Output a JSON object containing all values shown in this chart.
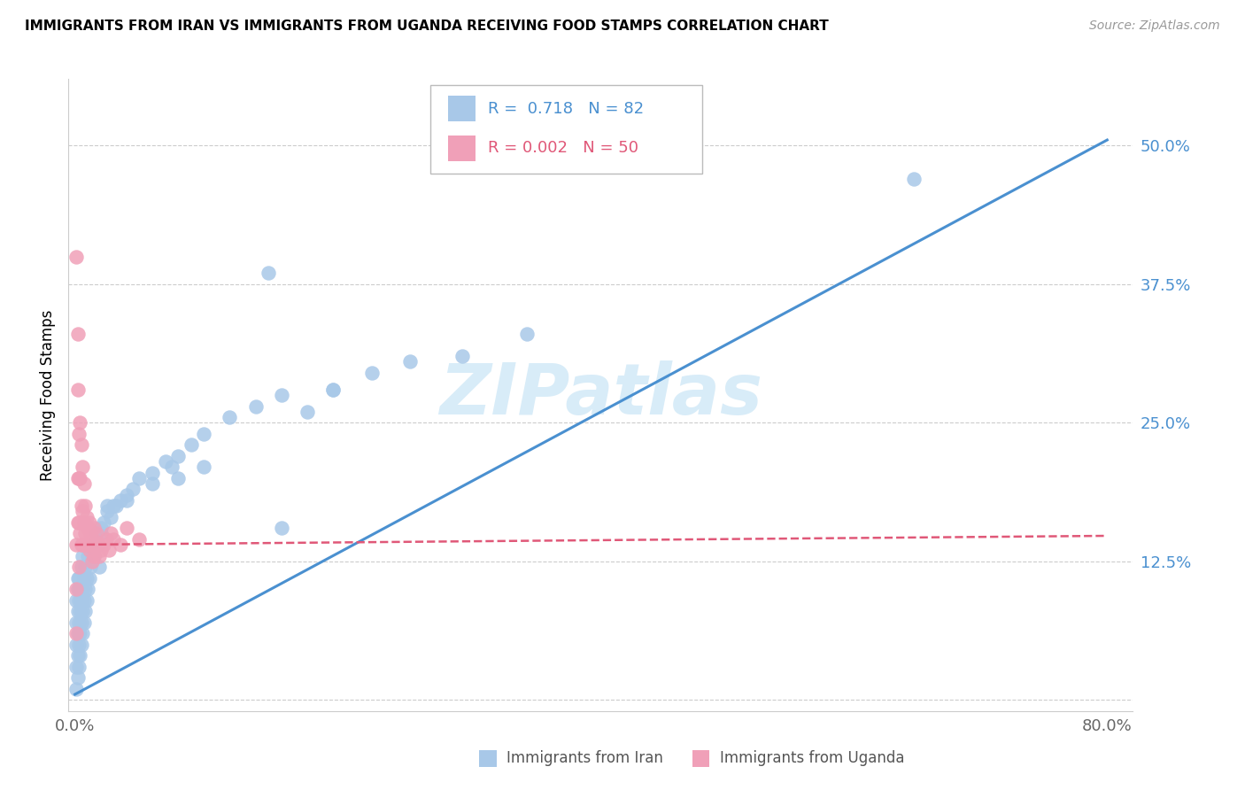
{
  "title": "IMMIGRANTS FROM IRAN VS IMMIGRANTS FROM UGANDA RECEIVING FOOD STAMPS CORRELATION CHART",
  "source": "Source: ZipAtlas.com",
  "ylabel": "Receiving Food Stamps",
  "xlim": [
    -0.005,
    0.82
  ],
  "ylim": [
    -0.01,
    0.56
  ],
  "xticks": [
    0.0,
    0.1,
    0.2,
    0.3,
    0.4,
    0.5,
    0.6,
    0.7,
    0.8
  ],
  "xticklabels": [
    "0.0%",
    "",
    "",
    "",
    "",
    "",
    "",
    "",
    "80.0%"
  ],
  "yticks": [
    0.0,
    0.125,
    0.25,
    0.375,
    0.5
  ],
  "yticklabels": [
    "",
    "12.5%",
    "25.0%",
    "37.5%",
    "50.0%"
  ],
  "iran_R": 0.718,
  "iran_N": 82,
  "uganda_R": 0.002,
  "uganda_N": 50,
  "iran_color": "#a8c8e8",
  "iran_line_color": "#4a90d0",
  "uganda_color": "#f0a0b8",
  "uganda_line_color": "#e05878",
  "watermark_color": "#d8ecf8",
  "grid_color": "#cccccc",
  "iran_scatter_x": [
    0.001,
    0.001,
    0.001,
    0.001,
    0.001,
    0.002,
    0.002,
    0.002,
    0.002,
    0.002,
    0.002,
    0.003,
    0.003,
    0.003,
    0.003,
    0.003,
    0.004,
    0.004,
    0.004,
    0.004,
    0.005,
    0.005,
    0.005,
    0.005,
    0.006,
    0.006,
    0.006,
    0.006,
    0.007,
    0.007,
    0.007,
    0.008,
    0.008,
    0.008,
    0.009,
    0.009,
    0.01,
    0.01,
    0.011,
    0.012,
    0.013,
    0.014,
    0.015,
    0.016,
    0.017,
    0.018,
    0.019,
    0.02,
    0.022,
    0.025,
    0.028,
    0.032,
    0.035,
    0.04,
    0.045,
    0.05,
    0.06,
    0.07,
    0.08,
    0.09,
    0.1,
    0.12,
    0.14,
    0.16,
    0.18,
    0.2,
    0.23,
    0.26,
    0.3,
    0.35,
    0.15,
    0.1,
    0.2,
    0.08,
    0.06,
    0.04,
    0.075,
    0.03,
    0.025,
    0.02,
    0.65,
    0.16
  ],
  "iran_scatter_y": [
    0.01,
    0.03,
    0.05,
    0.07,
    0.09,
    0.02,
    0.04,
    0.06,
    0.08,
    0.1,
    0.11,
    0.03,
    0.05,
    0.07,
    0.09,
    0.11,
    0.04,
    0.06,
    0.08,
    0.1,
    0.05,
    0.07,
    0.09,
    0.12,
    0.06,
    0.08,
    0.1,
    0.13,
    0.07,
    0.09,
    0.11,
    0.08,
    0.1,
    0.12,
    0.09,
    0.11,
    0.1,
    0.13,
    0.11,
    0.12,
    0.13,
    0.14,
    0.13,
    0.14,
    0.15,
    0.14,
    0.12,
    0.15,
    0.16,
    0.17,
    0.165,
    0.175,
    0.18,
    0.185,
    0.19,
    0.2,
    0.205,
    0.215,
    0.22,
    0.23,
    0.24,
    0.255,
    0.265,
    0.275,
    0.26,
    0.28,
    0.295,
    0.305,
    0.31,
    0.33,
    0.385,
    0.21,
    0.28,
    0.2,
    0.195,
    0.18,
    0.21,
    0.175,
    0.175,
    0.155,
    0.47,
    0.155
  ],
  "uganda_scatter_x": [
    0.001,
    0.001,
    0.001,
    0.001,
    0.002,
    0.002,
    0.002,
    0.002,
    0.003,
    0.003,
    0.003,
    0.003,
    0.004,
    0.004,
    0.004,
    0.005,
    0.005,
    0.005,
    0.006,
    0.006,
    0.006,
    0.007,
    0.007,
    0.008,
    0.008,
    0.009,
    0.009,
    0.01,
    0.01,
    0.011,
    0.011,
    0.012,
    0.013,
    0.013,
    0.014,
    0.015,
    0.015,
    0.016,
    0.017,
    0.018,
    0.019,
    0.02,
    0.022,
    0.024,
    0.026,
    0.028,
    0.03,
    0.035,
    0.04,
    0.05
  ],
  "uganda_scatter_y": [
    0.4,
    0.14,
    0.1,
    0.06,
    0.28,
    0.2,
    0.16,
    0.33,
    0.24,
    0.2,
    0.16,
    0.12,
    0.25,
    0.2,
    0.15,
    0.23,
    0.175,
    0.14,
    0.21,
    0.17,
    0.14,
    0.195,
    0.16,
    0.175,
    0.15,
    0.165,
    0.14,
    0.155,
    0.14,
    0.16,
    0.135,
    0.15,
    0.14,
    0.125,
    0.145,
    0.155,
    0.13,
    0.14,
    0.15,
    0.14,
    0.13,
    0.135,
    0.14,
    0.145,
    0.135,
    0.15,
    0.145,
    0.14,
    0.155,
    0.145
  ],
  "iran_line_x": [
    0.0,
    0.8
  ],
  "iran_line_y": [
    0.005,
    0.505
  ],
  "uganda_line_x": [
    0.0,
    0.8
  ],
  "uganda_line_y": [
    0.14,
    0.148
  ],
  "legend_iran_text": "R =  0.718   N = 82",
  "legend_uganda_text": "R = 0.002   N = 50",
  "bottom_legend_iran": "Immigrants from Iran",
  "bottom_legend_uganda": "Immigrants from Uganda"
}
